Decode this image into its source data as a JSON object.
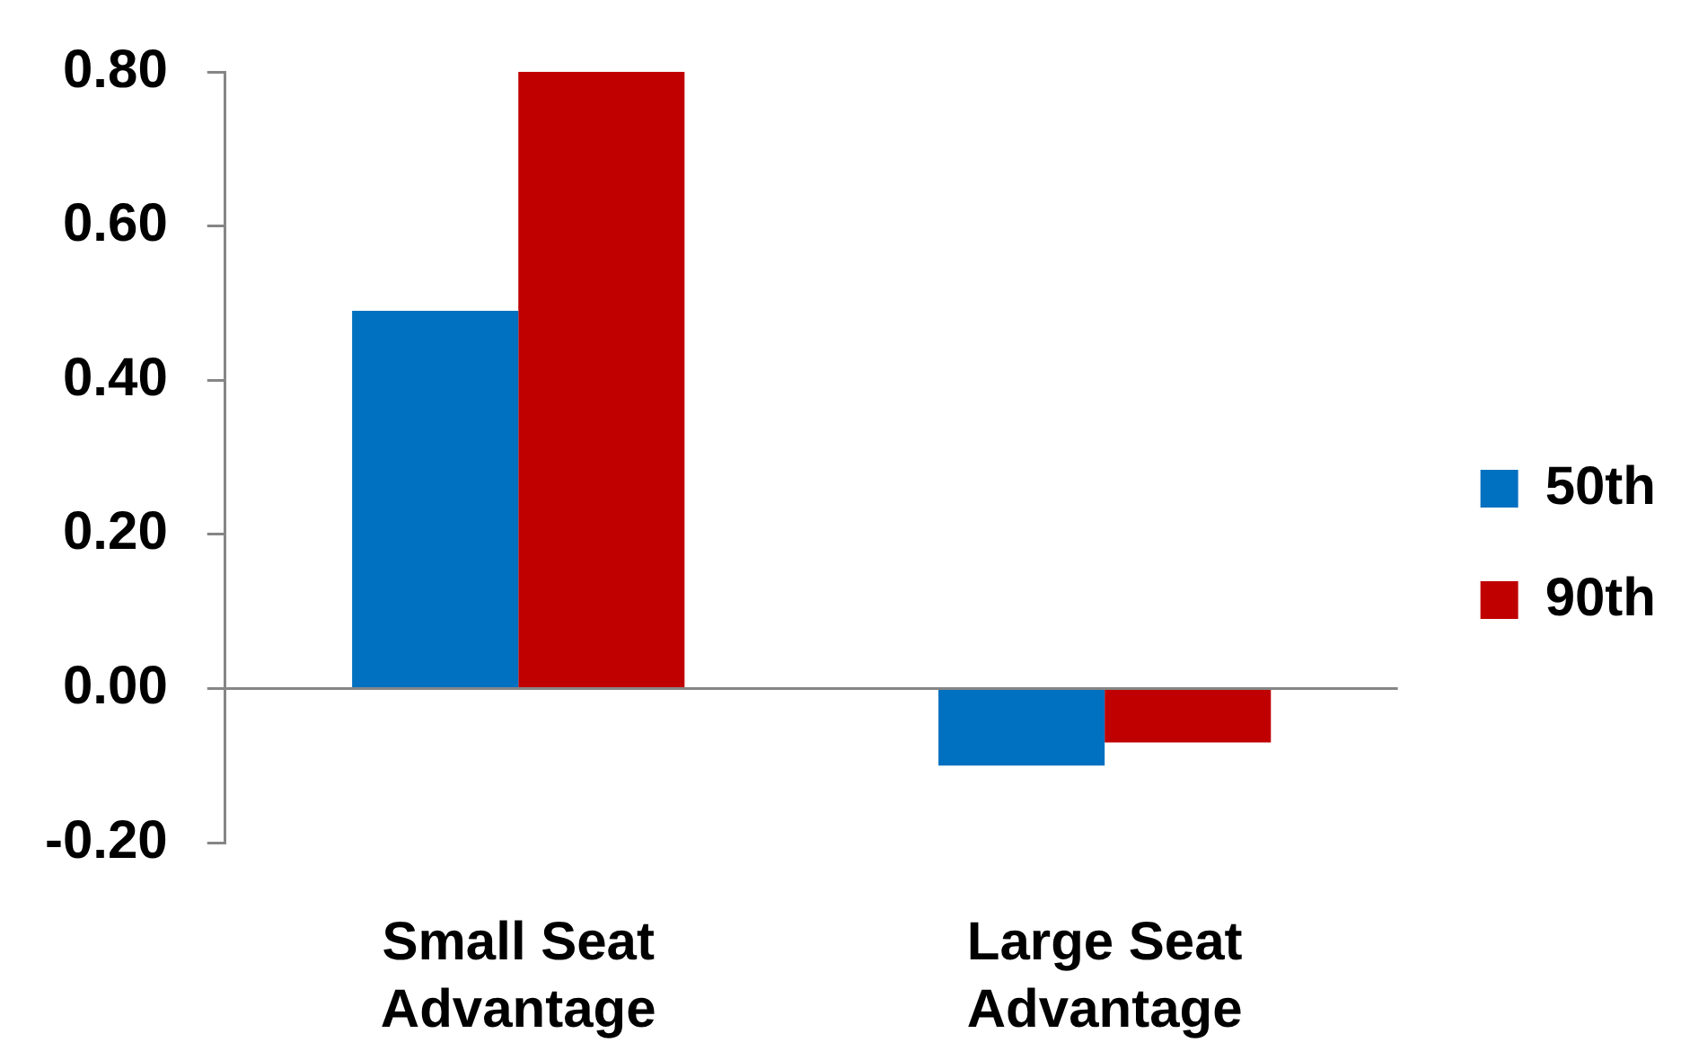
{
  "chart_data": {
    "type": "bar",
    "categories": [
      "Small Seat Advantage",
      "Large Seat Advantage"
    ],
    "series": [
      {
        "name": "50th",
        "color": "#0070c0",
        "values": [
          0.49,
          -0.1
        ]
      },
      {
        "name": "90th",
        "color": "#c00000",
        "values": [
          0.8,
          -0.07
        ]
      }
    ],
    "ylim": [
      -0.2,
      0.8
    ],
    "yticks": [
      {
        "value": -0.2,
        "label": "-0.20"
      },
      {
        "value": 0,
        "label": "0.00"
      },
      {
        "value": 0.2,
        "label": "0.20"
      },
      {
        "value": 0.4,
        "label": "0.40"
      },
      {
        "value": 0.6,
        "label": "0.60"
      },
      {
        "value": 0.8,
        "label": "0.80"
      }
    ],
    "legend": "right"
  }
}
